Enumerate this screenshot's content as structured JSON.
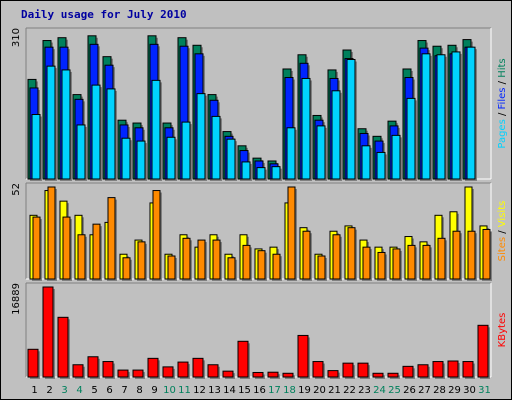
{
  "title": "Daily usage for July 2010",
  "chart_data": {
    "type": "bar",
    "title": "Daily usage for July 2010",
    "categories": [
      "1",
      "2",
      "3",
      "4",
      "5",
      "6",
      "7",
      "8",
      "9",
      "10",
      "11",
      "12",
      "13",
      "14",
      "15",
      "16",
      "17",
      "18",
      "19",
      "20",
      "21",
      "22",
      "23",
      "24",
      "25",
      "26",
      "27",
      "28",
      "29",
      "30",
      "31"
    ],
    "weekend_days": [
      "3",
      "4",
      "10",
      "11",
      "17",
      "18",
      "24",
      "25",
      "31"
    ],
    "colors": {
      "hits": "#00805c",
      "files": "#0024ff",
      "pages": "#00d2ff",
      "visits": "#ffff00",
      "sites": "#ff8a00",
      "kbytes": "#ff0000",
      "weekday_label": "#000000",
      "weekend_label": "#00805c"
    },
    "panels": [
      {
        "name": "top",
        "max_label": "310",
        "ymax": 310,
        "series": [
          {
            "name": "Hits",
            "values": [
              210,
              292,
              298,
              178,
              302,
              258,
              124,
              118,
              302,
              118,
              298,
              282,
              178,
              100,
              70,
              44,
              38,
              232,
              262,
              134,
              230,
              272,
              106,
              90,
              122,
              232,
              292,
              280,
              282,
              294,
              0
            ]
          },
          {
            "name": "Files",
            "values": [
              192,
              278,
              278,
              168,
              284,
              240,
              114,
              108,
              284,
              108,
              280,
              264,
              166,
              90,
              60,
              38,
              32,
              214,
              244,
              124,
              212,
              254,
              96,
              80,
              112,
              214,
              276,
              260,
              264,
              278,
              0
            ]
          },
          {
            "name": "Pages",
            "values": [
              136,
              238,
              230,
              114,
              198,
              190,
              86,
              80,
              208,
              88,
              120,
              180,
              132,
              84,
              36,
              24,
              26,
              108,
              212,
              112,
              186,
              252,
              70,
              56,
              92,
              170,
              264,
              262,
              268,
              278,
              0
            ]
          }
        ],
        "legend": [
          "Pages",
          "Files",
          "Hits"
        ]
      },
      {
        "name": "middle",
        "max_label": "52",
        "ymax": 52,
        "series": [
          {
            "name": "Visits",
            "values": [
              36,
              50,
              44,
              36,
              25,
              32,
              14,
              22,
              43,
              14,
              25,
              18,
              25,
              14,
              25,
              17,
              18,
              43,
              29,
              14,
              27,
              30,
              22,
              18,
              18,
              24,
              21,
              36,
              38,
              52,
              30
            ]
          },
          {
            "name": "Sites",
            "values": [
              35,
              52,
              35,
              25,
              31,
              46,
              12,
              21,
              50,
              13,
              23,
              22,
              22,
              12,
              19,
              16,
              14,
              52,
              27,
              13,
              25,
              29,
              18,
              15,
              17,
              19,
              19,
              23,
              27,
              27,
              28
            ]
          }
        ],
        "legend": [
          "Sites",
          "Visits"
        ]
      },
      {
        "name": "bottom",
        "max_label": "16889",
        "ymax": 16889,
        "series": [
          {
            "name": "KBytes",
            "values": [
              5200,
              16889,
              11200,
              2300,
              3800,
              2900,
              1300,
              1300,
              3500,
              1900,
              2800,
              3500,
              2300,
              1100,
              6700,
              850,
              900,
              700,
              7800,
              2900,
              1200,
              2600,
              2600,
              700,
              700,
              2000,
              2300,
              2900,
              3000,
              2900,
              9700
            ]
          }
        ],
        "legend": [
          "KBytes"
        ]
      }
    ]
  }
}
